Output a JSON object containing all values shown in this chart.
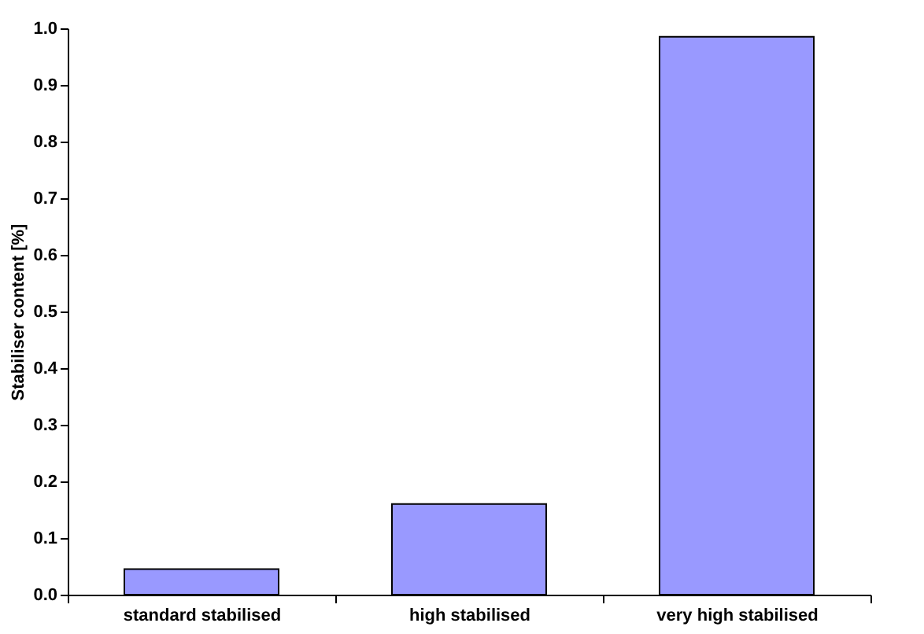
{
  "chart_data": {
    "type": "bar",
    "ylabel": "Stabiliser content [%]",
    "categories": [
      "standard stabilised",
      "high stabilised",
      "very high stabilised"
    ],
    "values": [
      0.045,
      0.16,
      0.985
    ],
    "color": "#9999ff",
    "ylim": [
      0,
      1.0
    ],
    "yticks": [
      {
        "value": 0,
        "label": "0.0"
      },
      0.1,
      0.2,
      0.3,
      0.4,
      0.5,
      0.6,
      0.7,
      0.8,
      0.9,
      {
        "value": 1.0,
        "label": "1.0"
      }
    ],
    "grid": false
  }
}
